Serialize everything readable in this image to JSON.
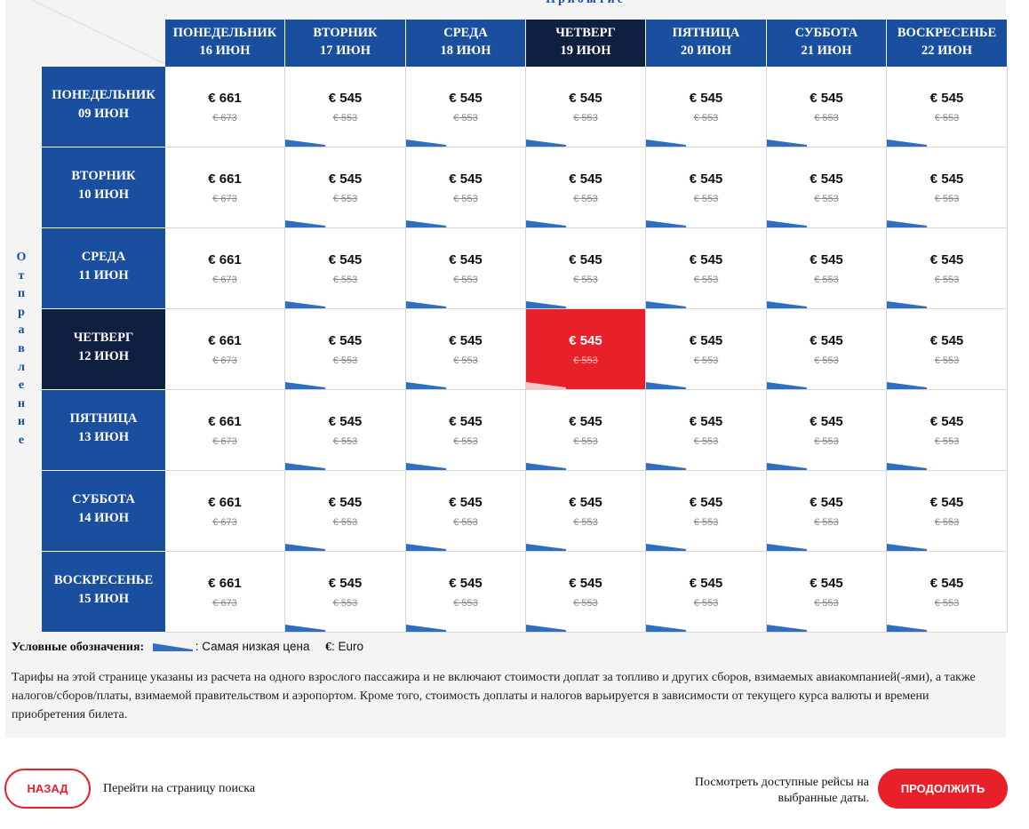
{
  "grid": {
    "arrival_title": "Прибытие",
    "departure_title": "Отправление",
    "columns": [
      {
        "day": "ПОНЕДЕЛЬНИК",
        "date": "16 ИЮН"
      },
      {
        "day": "ВТОРНИК",
        "date": "17 ИЮН"
      },
      {
        "day": "СРЕДА",
        "date": "18 ИЮН"
      },
      {
        "day": "ЧЕТВЕРГ",
        "date": "19 ИЮН"
      },
      {
        "day": "ПЯТНИЦА",
        "date": "20 ИЮН"
      },
      {
        "day": "СУББОТА",
        "date": "21 ИЮН"
      },
      {
        "day": "ВОСКРЕСЕНЬЕ",
        "date": "22 ИЮН"
      }
    ],
    "rows": [
      {
        "day": "ПОНЕДЕЛЬНИК",
        "date": "09 ИЮН"
      },
      {
        "day": "ВТОРНИК",
        "date": "10 ИЮН"
      },
      {
        "day": "СРЕДА",
        "date": "11 ИЮН"
      },
      {
        "day": "ЧЕТВЕРГ",
        "date": "12 ИЮН"
      },
      {
        "day": "ПЯТНИЦА",
        "date": "13 ИЮН"
      },
      {
        "day": "СУББОТА",
        "date": "14 ИЮН"
      },
      {
        "day": "ВОСКРЕСЕНЬЕ",
        "date": "15 ИЮН"
      }
    ],
    "active_column": 3,
    "active_row": 3,
    "cells": [
      [
        {
          "price": "€ 661",
          "old": "€ 673",
          "lowest": false
        },
        {
          "price": "€ 545",
          "old": "€ 553",
          "lowest": true
        },
        {
          "price": "€ 545",
          "old": "€ 553",
          "lowest": true
        },
        {
          "price": "€ 545",
          "old": "€ 553",
          "lowest": true
        },
        {
          "price": "€ 545",
          "old": "€ 553",
          "lowest": true
        },
        {
          "price": "€ 545",
          "old": "€ 553",
          "lowest": true
        },
        {
          "price": "€ 545",
          "old": "€ 553",
          "lowest": true
        }
      ],
      [
        {
          "price": "€ 661",
          "old": "€ 673",
          "lowest": false
        },
        {
          "price": "€ 545",
          "old": "€ 553",
          "lowest": true
        },
        {
          "price": "€ 545",
          "old": "€ 553",
          "lowest": true
        },
        {
          "price": "€ 545",
          "old": "€ 553",
          "lowest": true
        },
        {
          "price": "€ 545",
          "old": "€ 553",
          "lowest": true
        },
        {
          "price": "€ 545",
          "old": "€ 553",
          "lowest": true
        },
        {
          "price": "€ 545",
          "old": "€ 553",
          "lowest": true
        }
      ],
      [
        {
          "price": "€ 661",
          "old": "€ 673",
          "lowest": false
        },
        {
          "price": "€ 545",
          "old": "€ 553",
          "lowest": true
        },
        {
          "price": "€ 545",
          "old": "€ 553",
          "lowest": true
        },
        {
          "price": "€ 545",
          "old": "€ 553",
          "lowest": true
        },
        {
          "price": "€ 545",
          "old": "€ 553",
          "lowest": true
        },
        {
          "price": "€ 545",
          "old": "€ 553",
          "lowest": true
        },
        {
          "price": "€ 545",
          "old": "€ 553",
          "lowest": true
        }
      ],
      [
        {
          "price": "€ 661",
          "old": "€ 673",
          "lowest": false
        },
        {
          "price": "€ 545",
          "old": "€ 553",
          "lowest": true
        },
        {
          "price": "€ 545",
          "old": "€ 553",
          "lowest": true
        },
        {
          "price": "€ 545",
          "old": "€ 553",
          "lowest": true,
          "selected": true
        },
        {
          "price": "€ 545",
          "old": "€ 553",
          "lowest": true
        },
        {
          "price": "€ 545",
          "old": "€ 553",
          "lowest": true
        },
        {
          "price": "€ 545",
          "old": "€ 553",
          "lowest": true
        }
      ],
      [
        {
          "price": "€ 661",
          "old": "€ 673",
          "lowest": false
        },
        {
          "price": "€ 545",
          "old": "€ 553",
          "lowest": true
        },
        {
          "price": "€ 545",
          "old": "€ 553",
          "lowest": true
        },
        {
          "price": "€ 545",
          "old": "€ 553",
          "lowest": true
        },
        {
          "price": "€ 545",
          "old": "€ 553",
          "lowest": true
        },
        {
          "price": "€ 545",
          "old": "€ 553",
          "lowest": true
        },
        {
          "price": "€ 545",
          "old": "€ 553",
          "lowest": true
        }
      ],
      [
        {
          "price": "€ 661",
          "old": "€ 673",
          "lowest": false
        },
        {
          "price": "€ 545",
          "old": "€ 553",
          "lowest": true
        },
        {
          "price": "€ 545",
          "old": "€ 553",
          "lowest": true
        },
        {
          "price": "€ 545",
          "old": "€ 553",
          "lowest": true
        },
        {
          "price": "€ 545",
          "old": "€ 553",
          "lowest": true
        },
        {
          "price": "€ 545",
          "old": "€ 553",
          "lowest": true
        },
        {
          "price": "€ 545",
          "old": "€ 553",
          "lowest": true
        }
      ],
      [
        {
          "price": "€ 661",
          "old": "€ 673",
          "lowest": false
        },
        {
          "price": "€ 545",
          "old": "€ 553",
          "lowest": true
        },
        {
          "price": "€ 545",
          "old": "€ 553",
          "lowest": true
        },
        {
          "price": "€ 545",
          "old": "€ 553",
          "lowest": true
        },
        {
          "price": "€ 545",
          "old": "€ 553",
          "lowest": true
        },
        {
          "price": "€ 545",
          "old": "€ 553",
          "lowest": true
        },
        {
          "price": "€ 545",
          "old": "€ 553",
          "lowest": true
        }
      ]
    ]
  },
  "legend": {
    "label": "Условные обозначения:",
    "lowest_label": ": Самая низкая цена",
    "currency_symbol": "€",
    "currency_label": ": Euro"
  },
  "note": "Тарифы на этой странице указаны из расчета на одного взрослого пассажира и не включают стоимости доплат за топливо и других сборов, взимаемых авиакомпанией(-ями), а также налогов/сборов/платы, взимаемой правительством и аэропортом. Кроме того, стоимость доплаты и налогов варьируется в зависимости от текущего курса валюты и времени приобретения билета.",
  "footer": {
    "back_label": "НАЗАД",
    "back_text": "Перейти на страницу поиска",
    "next_text": "Посмотреть доступные рейсы на выбранные даты.",
    "next_label": "ПРОДОЛЖИТЬ"
  },
  "colors": {
    "header_blue": "#1a4fa0",
    "active_navy": "#0e1f3f",
    "selected_red": "#e8202a",
    "lowest_marker": "#2f6fbf"
  },
  "icons": {
    "lowest_price_marker": "lowest-price-marker-icon"
  }
}
